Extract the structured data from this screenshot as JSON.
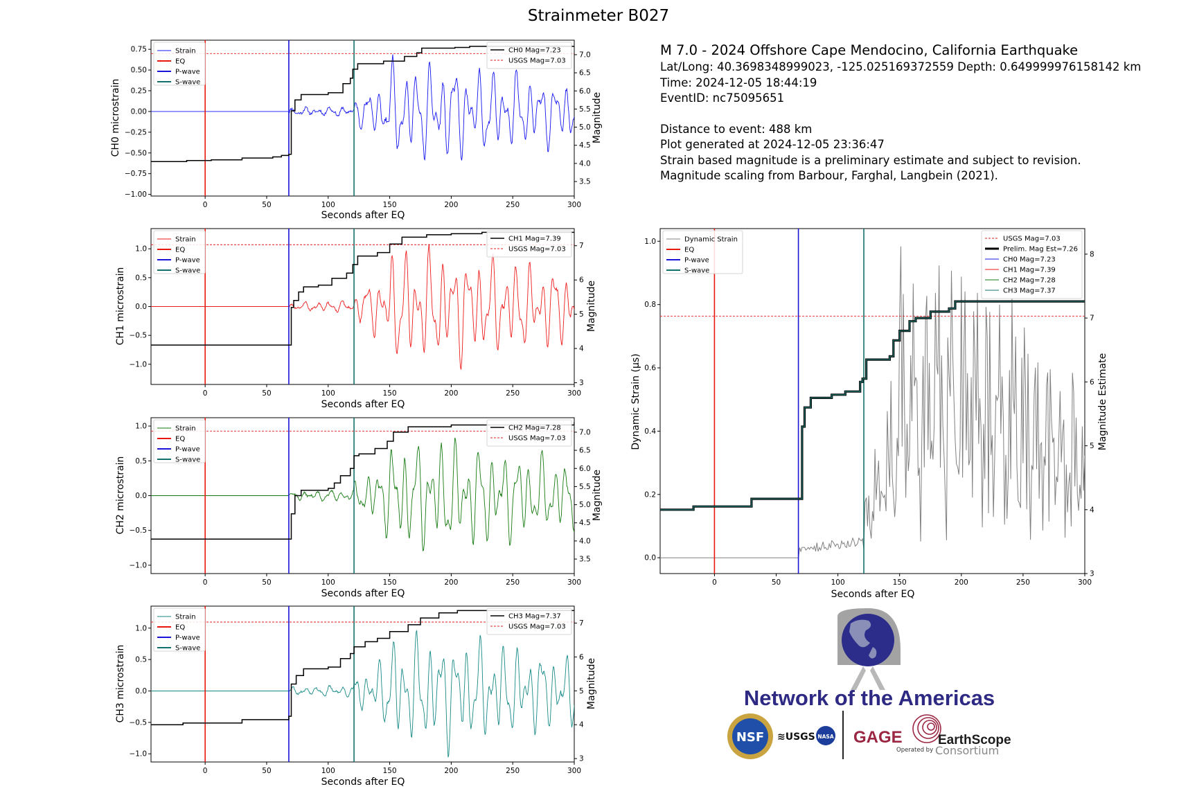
{
  "figure_title": "Strainmeter B027",
  "info": {
    "title": "M 7.0 - 2024 Offshore Cape Mendocino, California Earthquake",
    "latlong": "Lat/Long: 40.3698348999023, -125.025169372559  Depth: 0.649999976158142 km",
    "time": "Time: 2024-12-05 18:44:19",
    "event_id": "EventID: nc75095651",
    "distance": "Distance to event: 488 km",
    "generated": "Plot generated at 2024-12-05 23:36:47",
    "note1": "Strain based magnitude is a preliminary estimate and subject to revision.",
    "note2": "Magnitude scaling from Barbour, Farghal, Langbein (2021)."
  },
  "logo": {
    "network": "Network of the Americas",
    "nsf": "NSF",
    "usgs": "≋USGS",
    "nasa": "NASA",
    "gage": "GAGE",
    "operated": "Operated by",
    "earthscope": "EarthScope",
    "consortium": "Consortium"
  },
  "colors": {
    "eq": "#e8160c",
    "pwave": "#1a14d8",
    "swave": "#12706a",
    "usgs": "#e31b1b",
    "mag": "#000000",
    "ch0": "#1414f0",
    "ch1": "#ee1b1b",
    "ch2": "#157a10",
    "ch3": "#168a86",
    "dynamic": "#808080"
  },
  "chart_data": [
    {
      "id": "ch0",
      "type": "line",
      "xlabel": "Seconds after EQ",
      "ylabel": "CH0 microstrain",
      "y2label": "Magnitude",
      "xlim": [
        -44,
        300
      ],
      "ylim": [
        -1.02,
        0.86
      ],
      "y2lim": [
        3.1,
        7.4
      ],
      "xticks": [
        0,
        50,
        100,
        150,
        200,
        250,
        300
      ],
      "yticks": [
        -1.0,
        -0.75,
        -0.5,
        -0.25,
        0.0,
        0.25,
        0.5,
        0.75
      ],
      "ytick_labels": [
        "−1.00",
        "−0.75",
        "−0.50",
        "−0.25",
        "0.00",
        "0.25",
        "0.50",
        "0.75"
      ],
      "y2ticks": [
        3.5,
        4.0,
        4.5,
        5.0,
        5.5,
        6.0,
        6.5,
        7.0
      ],
      "y2tick_labels": [
        "3.5",
        "4.0",
        "4.5",
        "5.0",
        "5.5",
        "6.0",
        "6.5",
        "7.0"
      ],
      "eq_time": 0,
      "p_time": 68,
      "s_time": 121,
      "usgs_mag": 7.03,
      "legend_left": [
        "Strain",
        "EQ",
        "P-wave",
        "S-wave"
      ],
      "legend_right": [
        "CH0 Mag=7.23",
        "USGS Mag=7.03"
      ],
      "series_name": "Strain",
      "seed": 11,
      "amp": 0.62,
      "pre_amp": 0.04,
      "mag_steps": [
        [
          -44,
          4.05
        ],
        [
          -15,
          4.08
        ],
        [
          5,
          4.1
        ],
        [
          30,
          4.15
        ],
        [
          55,
          4.18
        ],
        [
          62,
          4.22
        ],
        [
          68,
          4.25
        ],
        [
          70,
          5.45
        ],
        [
          73,
          5.75
        ],
        [
          78,
          5.9
        ],
        [
          100,
          5.95
        ],
        [
          112,
          6.2
        ],
        [
          118,
          6.35
        ],
        [
          120,
          6.6
        ],
        [
          124,
          6.75
        ],
        [
          145,
          6.82
        ],
        [
          162,
          6.95
        ],
        [
          172,
          7.05
        ],
        [
          176,
          7.18
        ],
        [
          203,
          7.2
        ],
        [
          215,
          7.23
        ],
        [
          300,
          7.23
        ]
      ]
    },
    {
      "id": "ch1",
      "type": "line",
      "xlabel": "Seconds after EQ",
      "ylabel": "CH1 microstrain",
      "y2label": "Magnitude",
      "xlim": [
        -44,
        300
      ],
      "ylim": [
        -1.35,
        1.35
      ],
      "y2lim": [
        2.95,
        7.5
      ],
      "xticks": [
        0,
        50,
        100,
        150,
        200,
        250,
        300
      ],
      "yticks": [
        -1.0,
        -0.5,
        0.0,
        0.5,
        1.0
      ],
      "ytick_labels": [
        "−1.0",
        "−0.5",
        "0.0",
        "0.5",
        "1.0"
      ],
      "y2ticks": [
        3,
        4,
        5,
        6,
        7
      ],
      "y2tick_labels": [
        "3",
        "4",
        "5",
        "6",
        "7"
      ],
      "eq_time": 0,
      "p_time": 68,
      "s_time": 121,
      "usgs_mag": 7.03,
      "legend_left": [
        "Strain",
        "EQ",
        "P-wave",
        "S-wave"
      ],
      "legend_right": [
        "CH1 Mag=7.39",
        "USGS Mag=7.03"
      ],
      "series_name": "Strain",
      "seed": 23,
      "amp": 1.05,
      "pre_amp": 0.06,
      "mag_steps": [
        [
          -44,
          4.1
        ],
        [
          68,
          4.1
        ],
        [
          70,
          5.2
        ],
        [
          72,
          5.4
        ],
        [
          76,
          5.65
        ],
        [
          80,
          5.8
        ],
        [
          92,
          5.85
        ],
        [
          103,
          6.05
        ],
        [
          115,
          6.2
        ],
        [
          120,
          6.45
        ],
        [
          124,
          6.7
        ],
        [
          140,
          6.8
        ],
        [
          150,
          7.05
        ],
        [
          160,
          7.25
        ],
        [
          180,
          7.32
        ],
        [
          200,
          7.35
        ],
        [
          225,
          7.39
        ],
        [
          300,
          7.39
        ]
      ]
    },
    {
      "id": "ch2",
      "type": "line",
      "xlabel": "Seconds after EQ",
      "ylabel": "CH2 microstrain",
      "y2label": "Magnitude",
      "xlim": [
        -44,
        300
      ],
      "ylim": [
        -1.12,
        1.12
      ],
      "y2lim": [
        3.1,
        7.4
      ],
      "xticks": [
        0,
        50,
        100,
        150,
        200,
        250,
        300
      ],
      "yticks": [
        -1.0,
        -0.5,
        0.0,
        0.5,
        1.0
      ],
      "ytick_labels": [
        "−1.0",
        "−0.5",
        "0.0",
        "0.5",
        "1.0"
      ],
      "y2ticks": [
        3.5,
        4.0,
        4.5,
        5.0,
        5.5,
        6.0,
        6.5,
        7.0
      ],
      "y2tick_labels": [
        "3.5",
        "4.0",
        "4.5",
        "5.0",
        "5.5",
        "6.0",
        "6.5",
        "7.0"
      ],
      "eq_time": 0,
      "p_time": 68,
      "s_time": 121,
      "usgs_mag": 7.03,
      "legend_left": [
        "Strain",
        "EQ",
        "P-wave",
        "S-wave"
      ],
      "legend_right": [
        "CH2 Mag=7.28",
        "USGS Mag=7.03"
      ],
      "series_name": "Strain",
      "seed": 37,
      "amp": 0.85,
      "pre_amp": 0.05,
      "mag_steps": [
        [
          -44,
          4.05
        ],
        [
          68,
          4.05
        ],
        [
          70,
          4.75
        ],
        [
          73,
          5.25
        ],
        [
          78,
          5.4
        ],
        [
          100,
          5.45
        ],
        [
          105,
          5.6
        ],
        [
          110,
          5.8
        ],
        [
          118,
          6.0
        ],
        [
          121,
          6.35
        ],
        [
          125,
          6.4
        ],
        [
          138,
          6.55
        ],
        [
          148,
          6.75
        ],
        [
          153,
          7.0
        ],
        [
          165,
          7.15
        ],
        [
          200,
          7.2
        ],
        [
          300,
          7.28
        ]
      ]
    },
    {
      "id": "ch3",
      "type": "line",
      "xlabel": "Seconds after EQ",
      "ylabel": "CH3 microstrain",
      "y2label": "Magnitude",
      "xlim": [
        -44,
        300
      ],
      "ylim": [
        -1.13,
        1.35
      ],
      "y2lim": [
        2.9,
        7.5
      ],
      "xticks": [
        0,
        50,
        100,
        150,
        200,
        250,
        300
      ],
      "yticks": [
        -1.0,
        -0.5,
        0.0,
        0.5,
        1.0
      ],
      "ytick_labels": [
        "−1.0",
        "−0.5",
        "0.0",
        "0.5",
        "1.0"
      ],
      "y2ticks": [
        3,
        4,
        5,
        6,
        7
      ],
      "y2tick_labels": [
        "3",
        "4",
        "5",
        "6",
        "7"
      ],
      "eq_time": 0,
      "p_time": 68,
      "s_time": 121,
      "usgs_mag": 7.03,
      "legend_left": [
        "Strain",
        "EQ",
        "P-wave",
        "S-wave"
      ],
      "legend_right": [
        "CH3 Mag=7.37",
        "USGS Mag=7.03"
      ],
      "series_name": "Strain",
      "seed": 53,
      "amp": 0.95,
      "pre_amp": 0.06,
      "mag_steps": [
        [
          -44,
          4.0
        ],
        [
          -18,
          4.05
        ],
        [
          30,
          4.15
        ],
        [
          68,
          4.25
        ],
        [
          70,
          5.2
        ],
        [
          74,
          5.45
        ],
        [
          80,
          5.65
        ],
        [
          100,
          5.7
        ],
        [
          110,
          5.95
        ],
        [
          118,
          6.1
        ],
        [
          121,
          6.3
        ],
        [
          130,
          6.45
        ],
        [
          140,
          6.55
        ],
        [
          150,
          6.75
        ],
        [
          165,
          6.95
        ],
        [
          175,
          7.15
        ],
        [
          190,
          7.3
        ],
        [
          205,
          7.37
        ],
        [
          300,
          7.37
        ]
      ]
    },
    {
      "id": "dyn",
      "type": "line",
      "xlabel": "Seconds after EQ",
      "ylabel": "Dynamic Strain (μs)",
      "y2label": "Magnitude Estimate",
      "xlim": [
        -44,
        300
      ],
      "ylim": [
        -0.05,
        1.04
      ],
      "y2lim": [
        3.0,
        8.4
      ],
      "xticks": [
        0,
        50,
        100,
        150,
        200,
        250,
        300
      ],
      "yticks": [
        0.0,
        0.2,
        0.4,
        0.6,
        0.8,
        1.0
      ],
      "ytick_labels": [
        "0.0",
        "0.2",
        "0.4",
        "0.6",
        "0.8",
        "1.0"
      ],
      "y2ticks": [
        3,
        4,
        5,
        6,
        7,
        8
      ],
      "y2tick_labels": [
        "3",
        "4",
        "5",
        "6",
        "7",
        "8"
      ],
      "eq_time": 0,
      "p_time": 68,
      "s_time": 121,
      "usgs_mag": 7.03,
      "legend_left": [
        "Dynamic Strain",
        "EQ",
        "P-wave",
        "S-wave"
      ],
      "legend_right": [
        "USGS Mag=7.03",
        "Prelim. Mag Est=7.26",
        "CH0 Mag=7.23",
        "CH1 Mag=7.39",
        "CH2 Mag=7.28",
        "CH3 Mag=7.37"
      ],
      "series_name": "Dynamic Strain",
      "seed": 71,
      "amp": 0.62,
      "pre_amp": 0.0,
      "mag_steps": [
        [
          -44,
          4.0
        ],
        [
          -17,
          4.05
        ],
        [
          30,
          4.17
        ],
        [
          70,
          4.17
        ],
        [
          71,
          5.3
        ],
        [
          73,
          5.6
        ],
        [
          78,
          5.75
        ],
        [
          95,
          5.8
        ],
        [
          106,
          5.85
        ],
        [
          118,
          6.0
        ],
        [
          120,
          6.05
        ],
        [
          123,
          6.35
        ],
        [
          142,
          6.4
        ],
        [
          145,
          6.65
        ],
        [
          150,
          6.8
        ],
        [
          158,
          6.95
        ],
        [
          163,
          7.0
        ],
        [
          175,
          7.1
        ],
        [
          190,
          7.15
        ],
        [
          195,
          7.26
        ],
        [
          300,
          7.26
        ]
      ]
    }
  ]
}
